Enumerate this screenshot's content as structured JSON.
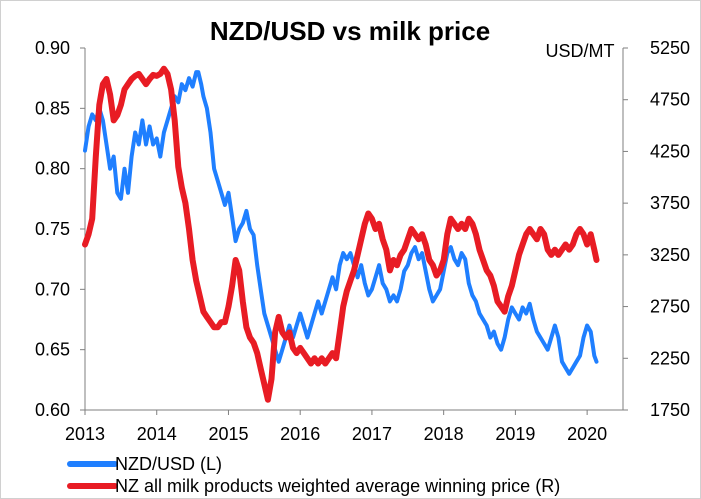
{
  "chart_data": {
    "type": "line",
    "title": "NZD/USD vs milk price",
    "right_axis_unit": "USD/MT",
    "x_ticks": [
      "2013",
      "2014",
      "2015",
      "2016",
      "2017",
      "2018",
      "2019",
      "2020"
    ],
    "xlim": [
      2013.0,
      2020.5
    ],
    "left_axis": {
      "ylim": [
        0.6,
        0.9
      ],
      "ticks": [
        "0.60",
        "0.65",
        "0.70",
        "0.75",
        "0.80",
        "0.85",
        "0.90"
      ]
    },
    "right_axis": {
      "ylim": [
        1750,
        5250
      ],
      "ticks": [
        "1750",
        "2250",
        "2750",
        "3250",
        "3750",
        "4250",
        "4750",
        "5250"
      ]
    },
    "legend_position": "bottom-left",
    "grid": false,
    "series": [
      {
        "name": "NZD/USD (L)",
        "axis": "left",
        "color": "#1f7fff",
        "points": [
          [
            2013.0,
            0.815
          ],
          [
            2013.05,
            0.835
          ],
          [
            2013.1,
            0.845
          ],
          [
            2013.15,
            0.84
          ],
          [
            2013.2,
            0.85
          ],
          [
            2013.25,
            0.84
          ],
          [
            2013.3,
            0.82
          ],
          [
            2013.35,
            0.8
          ],
          [
            2013.4,
            0.81
          ],
          [
            2013.45,
            0.78
          ],
          [
            2013.5,
            0.775
          ],
          [
            2013.55,
            0.8
          ],
          [
            2013.6,
            0.78
          ],
          [
            2013.65,
            0.81
          ],
          [
            2013.7,
            0.83
          ],
          [
            2013.75,
            0.82
          ],
          [
            2013.8,
            0.84
          ],
          [
            2013.85,
            0.82
          ],
          [
            2013.9,
            0.835
          ],
          [
            2013.95,
            0.82
          ],
          [
            2014.0,
            0.825
          ],
          [
            2014.05,
            0.81
          ],
          [
            2014.1,
            0.83
          ],
          [
            2014.15,
            0.84
          ],
          [
            2014.2,
            0.85
          ],
          [
            2014.25,
            0.86
          ],
          [
            2014.3,
            0.855
          ],
          [
            2014.35,
            0.87
          ],
          [
            2014.4,
            0.865
          ],
          [
            2014.45,
            0.875
          ],
          [
            2014.5,
            0.868
          ],
          [
            2014.55,
            0.88
          ],
          [
            2014.58,
            0.88
          ],
          [
            2014.62,
            0.87
          ],
          [
            2014.65,
            0.86
          ],
          [
            2014.7,
            0.85
          ],
          [
            2014.75,
            0.83
          ],
          [
            2014.8,
            0.8
          ],
          [
            2014.85,
            0.79
          ],
          [
            2014.9,
            0.78
          ],
          [
            2014.95,
            0.77
          ],
          [
            2015.0,
            0.78
          ],
          [
            2015.05,
            0.76
          ],
          [
            2015.1,
            0.74
          ],
          [
            2015.15,
            0.75
          ],
          [
            2015.2,
            0.755
          ],
          [
            2015.25,
            0.765
          ],
          [
            2015.3,
            0.75
          ],
          [
            2015.35,
            0.745
          ],
          [
            2015.4,
            0.72
          ],
          [
            2015.45,
            0.7
          ],
          [
            2015.5,
            0.68
          ],
          [
            2015.55,
            0.67
          ],
          [
            2015.6,
            0.66
          ],
          [
            2015.65,
            0.65
          ],
          [
            2015.7,
            0.64
          ],
          [
            2015.75,
            0.65
          ],
          [
            2015.8,
            0.66
          ],
          [
            2015.85,
            0.67
          ],
          [
            2015.9,
            0.66
          ],
          [
            2015.95,
            0.67
          ],
          [
            2016.0,
            0.68
          ],
          [
            2016.05,
            0.67
          ],
          [
            2016.1,
            0.66
          ],
          [
            2016.15,
            0.67
          ],
          [
            2016.2,
            0.68
          ],
          [
            2016.25,
            0.69
          ],
          [
            2016.3,
            0.68
          ],
          [
            2016.35,
            0.69
          ],
          [
            2016.4,
            0.7
          ],
          [
            2016.45,
            0.71
          ],
          [
            2016.5,
            0.7
          ],
          [
            2016.55,
            0.72
          ],
          [
            2016.6,
            0.73
          ],
          [
            2016.65,
            0.725
          ],
          [
            2016.7,
            0.73
          ],
          [
            2016.75,
            0.72
          ],
          [
            2016.8,
            0.71
          ],
          [
            2016.85,
            0.72
          ],
          [
            2016.9,
            0.705
          ],
          [
            2016.95,
            0.695
          ],
          [
            2017.0,
            0.7
          ],
          [
            2017.05,
            0.71
          ],
          [
            2017.1,
            0.72
          ],
          [
            2017.15,
            0.705
          ],
          [
            2017.2,
            0.7
          ],
          [
            2017.25,
            0.69
          ],
          [
            2017.3,
            0.695
          ],
          [
            2017.35,
            0.69
          ],
          [
            2017.4,
            0.7
          ],
          [
            2017.45,
            0.715
          ],
          [
            2017.5,
            0.72
          ],
          [
            2017.55,
            0.73
          ],
          [
            2017.6,
            0.735
          ],
          [
            2017.65,
            0.725
          ],
          [
            2017.7,
            0.73
          ],
          [
            2017.75,
            0.715
          ],
          [
            2017.8,
            0.7
          ],
          [
            2017.85,
            0.69
          ],
          [
            2017.9,
            0.695
          ],
          [
            2017.95,
            0.7
          ],
          [
            2018.0,
            0.715
          ],
          [
            2018.05,
            0.73
          ],
          [
            2018.1,
            0.735
          ],
          [
            2018.15,
            0.725
          ],
          [
            2018.2,
            0.72
          ],
          [
            2018.25,
            0.73
          ],
          [
            2018.3,
            0.725
          ],
          [
            2018.35,
            0.705
          ],
          [
            2018.4,
            0.695
          ],
          [
            2018.45,
            0.69
          ],
          [
            2018.5,
            0.68
          ],
          [
            2018.55,
            0.675
          ],
          [
            2018.6,
            0.67
          ],
          [
            2018.65,
            0.66
          ],
          [
            2018.7,
            0.665
          ],
          [
            2018.75,
            0.655
          ],
          [
            2018.8,
            0.65
          ],
          [
            2018.85,
            0.66
          ],
          [
            2018.9,
            0.675
          ],
          [
            2018.95,
            0.685
          ],
          [
            2019.0,
            0.68
          ],
          [
            2019.05,
            0.675
          ],
          [
            2019.1,
            0.685
          ],
          [
            2019.15,
            0.68
          ],
          [
            2019.2,
            0.688
          ],
          [
            2019.25,
            0.675
          ],
          [
            2019.3,
            0.665
          ],
          [
            2019.35,
            0.66
          ],
          [
            2019.4,
            0.655
          ],
          [
            2019.45,
            0.65
          ],
          [
            2019.5,
            0.66
          ],
          [
            2019.55,
            0.67
          ],
          [
            2019.6,
            0.66
          ],
          [
            2019.65,
            0.64
          ],
          [
            2019.7,
            0.635
          ],
          [
            2019.75,
            0.63
          ],
          [
            2019.8,
            0.635
          ],
          [
            2019.85,
            0.64
          ],
          [
            2019.9,
            0.645
          ],
          [
            2019.95,
            0.66
          ],
          [
            2020.0,
            0.67
          ],
          [
            2020.05,
            0.665
          ],
          [
            2020.1,
            0.645
          ],
          [
            2020.13,
            0.64
          ]
        ]
      },
      {
        "name": "NZ all milk products weighted average winning price (R)",
        "axis": "right",
        "color": "#e81c24",
        "points": [
          [
            2013.0,
            3350
          ],
          [
            2013.05,
            3450
          ],
          [
            2013.1,
            3600
          ],
          [
            2013.15,
            4200
          ],
          [
            2013.2,
            4700
          ],
          [
            2013.25,
            4900
          ],
          [
            2013.3,
            4950
          ],
          [
            2013.35,
            4800
          ],
          [
            2013.4,
            4550
          ],
          [
            2013.45,
            4600
          ],
          [
            2013.5,
            4700
          ],
          [
            2013.55,
            4850
          ],
          [
            2013.6,
            4900
          ],
          [
            2013.65,
            4950
          ],
          [
            2013.7,
            4980
          ],
          [
            2013.75,
            5000
          ],
          [
            2013.8,
            4950
          ],
          [
            2013.85,
            4900
          ],
          [
            2013.9,
            4950
          ],
          [
            2013.95,
            4990
          ],
          [
            2014.0,
            4980
          ],
          [
            2014.05,
            5000
          ],
          [
            2014.1,
            5050
          ],
          [
            2014.15,
            5000
          ],
          [
            2014.2,
            4850
          ],
          [
            2014.25,
            4550
          ],
          [
            2014.3,
            4100
          ],
          [
            2014.35,
            3900
          ],
          [
            2014.4,
            3750
          ],
          [
            2014.45,
            3500
          ],
          [
            2014.5,
            3200
          ],
          [
            2014.55,
            3000
          ],
          [
            2014.6,
            2850
          ],
          [
            2014.65,
            2700
          ],
          [
            2014.7,
            2650
          ],
          [
            2014.75,
            2600
          ],
          [
            2014.8,
            2550
          ],
          [
            2014.85,
            2550
          ],
          [
            2014.9,
            2600
          ],
          [
            2014.95,
            2600
          ],
          [
            2015.0,
            2750
          ],
          [
            2015.05,
            2950
          ],
          [
            2015.1,
            3200
          ],
          [
            2015.15,
            3100
          ],
          [
            2015.2,
            2800
          ],
          [
            2015.25,
            2550
          ],
          [
            2015.3,
            2450
          ],
          [
            2015.35,
            2400
          ],
          [
            2015.4,
            2300
          ],
          [
            2015.45,
            2150
          ],
          [
            2015.5,
            2000
          ],
          [
            2015.55,
            1850
          ],
          [
            2015.6,
            2050
          ],
          [
            2015.65,
            2500
          ],
          [
            2015.7,
            2650
          ],
          [
            2015.75,
            2500
          ],
          [
            2015.8,
            2450
          ],
          [
            2015.85,
            2500
          ],
          [
            2015.9,
            2350
          ],
          [
            2015.95,
            2300
          ],
          [
            2016.0,
            2350
          ],
          [
            2016.05,
            2300
          ],
          [
            2016.1,
            2250
          ],
          [
            2016.15,
            2200
          ],
          [
            2016.2,
            2250
          ],
          [
            2016.25,
            2200
          ],
          [
            2016.3,
            2250
          ],
          [
            2016.35,
            2200
          ],
          [
            2016.4,
            2250
          ],
          [
            2016.45,
            2300
          ],
          [
            2016.5,
            2250
          ],
          [
            2016.55,
            2500
          ],
          [
            2016.6,
            2750
          ],
          [
            2016.65,
            2900
          ],
          [
            2016.7,
            3000
          ],
          [
            2016.75,
            3100
          ],
          [
            2016.8,
            3250
          ],
          [
            2016.85,
            3400
          ],
          [
            2016.9,
            3550
          ],
          [
            2016.95,
            3650
          ],
          [
            2017.0,
            3600
          ],
          [
            2017.05,
            3500
          ],
          [
            2017.1,
            3550
          ],
          [
            2017.15,
            3400
          ],
          [
            2017.2,
            3300
          ],
          [
            2017.25,
            3100
          ],
          [
            2017.3,
            3200
          ],
          [
            2017.35,
            3150
          ],
          [
            2017.4,
            3250
          ],
          [
            2017.45,
            3300
          ],
          [
            2017.5,
            3400
          ],
          [
            2017.55,
            3500
          ],
          [
            2017.6,
            3450
          ],
          [
            2017.65,
            3400
          ],
          [
            2017.7,
            3450
          ],
          [
            2017.75,
            3350
          ],
          [
            2017.8,
            3200
          ],
          [
            2017.85,
            3150
          ],
          [
            2017.9,
            3050
          ],
          [
            2017.95,
            3100
          ],
          [
            2018.0,
            3200
          ],
          [
            2018.05,
            3450
          ],
          [
            2018.1,
            3600
          ],
          [
            2018.15,
            3550
          ],
          [
            2018.2,
            3500
          ],
          [
            2018.25,
            3550
          ],
          [
            2018.3,
            3500
          ],
          [
            2018.35,
            3600
          ],
          [
            2018.4,
            3550
          ],
          [
            2018.45,
            3450
          ],
          [
            2018.5,
            3300
          ],
          [
            2018.55,
            3200
          ],
          [
            2018.6,
            3100
          ],
          [
            2018.65,
            3050
          ],
          [
            2018.7,
            2950
          ],
          [
            2018.75,
            2800
          ],
          [
            2018.8,
            2750
          ],
          [
            2018.85,
            2700
          ],
          [
            2018.9,
            2850
          ],
          [
            2018.95,
            2950
          ],
          [
            2019.0,
            3100
          ],
          [
            2019.05,
            3250
          ],
          [
            2019.1,
            3350
          ],
          [
            2019.15,
            3450
          ],
          [
            2019.2,
            3500
          ],
          [
            2019.25,
            3450
          ],
          [
            2019.3,
            3400
          ],
          [
            2019.35,
            3500
          ],
          [
            2019.4,
            3450
          ],
          [
            2019.45,
            3300
          ],
          [
            2019.5,
            3250
          ],
          [
            2019.55,
            3300
          ],
          [
            2019.6,
            3250
          ],
          [
            2019.65,
            3300
          ],
          [
            2019.7,
            3350
          ],
          [
            2019.75,
            3300
          ],
          [
            2019.8,
            3350
          ],
          [
            2019.85,
            3450
          ],
          [
            2019.9,
            3500
          ],
          [
            2019.95,
            3450
          ],
          [
            2020.0,
            3350
          ],
          [
            2020.05,
            3450
          ],
          [
            2020.1,
            3300
          ],
          [
            2020.13,
            3200
          ]
        ]
      }
    ]
  }
}
